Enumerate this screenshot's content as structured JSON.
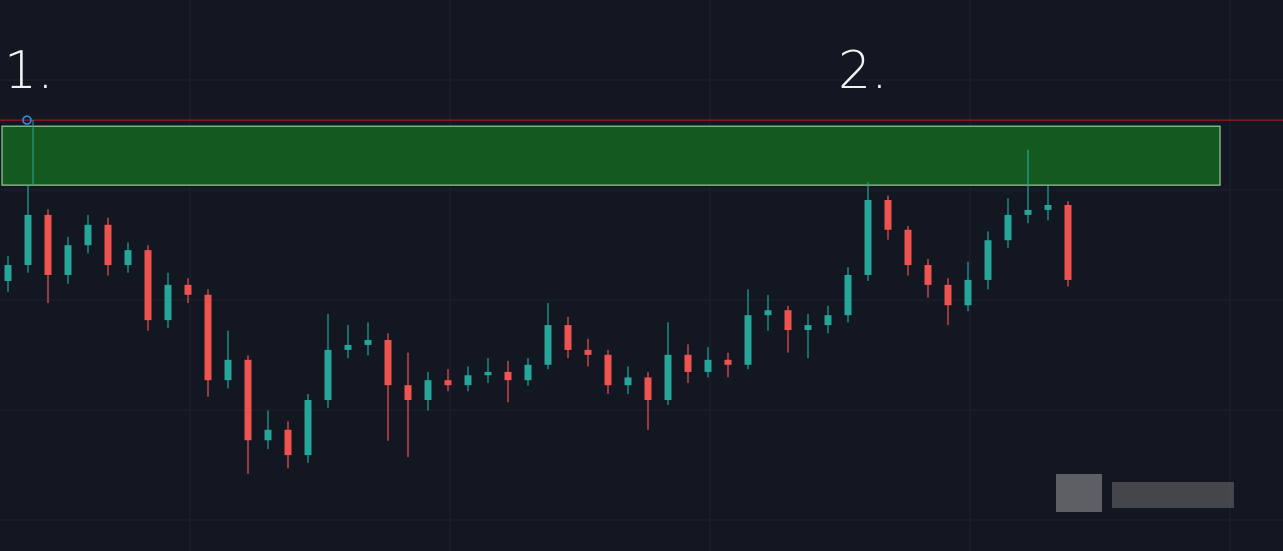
{
  "chart_data": {
    "type": "candlestick",
    "annotations": [
      "1.",
      "2."
    ],
    "ylim": [
      0,
      100
    ],
    "up_color": "#26a69a",
    "down_color": "#ef5350",
    "zone": {
      "low": 66.4,
      "high": 77.1,
      "color": "#145a20"
    },
    "resistance_line": {
      "value": 78.2,
      "color": "#b71c1c"
    },
    "open": [
      49.0,
      51.9,
      61.0,
      50.1,
      55.5,
      59.2,
      51.9,
      54.6,
      41.9,
      48.3,
      46.5,
      31.0,
      34.7,
      20.1,
      22.0,
      17.4,
      27.4,
      36.5,
      37.4,
      38.3,
      30.1,
      27.4,
      31.0,
      30.1,
      31.9,
      32.5,
      31.0,
      33.8,
      41.0,
      36.5,
      35.6,
      30.1,
      31.5,
      27.4,
      35.6,
      32.5,
      34.7,
      33.8,
      42.8,
      43.7,
      40.1,
      41.0,
      42.8,
      50.1,
      63.7,
      58.3,
      51.9,
      48.3,
      44.6,
      49.2,
      56.4,
      61.0,
      61.9,
      62.8
    ],
    "high": [
      53.5,
      66.4,
      62.0,
      57.0,
      61.0,
      60.5,
      56.0,
      55.5,
      50.5,
      49.5,
      47.5,
      40.0,
      35.5,
      25.5,
      23.5,
      28.5,
      43.0,
      41.0,
      41.5,
      39.5,
      36.0,
      32.5,
      33.0,
      33.5,
      35.0,
      34.5,
      35.0,
      45.0,
      42.5,
      38.5,
      36.5,
      33.5,
      32.5,
      41.5,
      37.5,
      37.0,
      36.0,
      47.5,
      46.5,
      44.5,
      43.0,
      44.5,
      51.5,
      66.9,
      64.5,
      59.0,
      53.0,
      49.5,
      52.5,
      58.0,
      64.0,
      72.8,
      66.4,
      63.5
    ],
    "low": [
      47.0,
      50.5,
      45.0,
      48.5,
      54.0,
      50.0,
      50.5,
      40.0,
      40.5,
      45.0,
      28.0,
      29.5,
      14.0,
      18.5,
      15.0,
      16.0,
      26.0,
      35.0,
      35.5,
      20.0,
      17.0,
      25.5,
      29.0,
      29.0,
      30.5,
      27.0,
      30.0,
      33.0,
      35.0,
      33.5,
      28.5,
      28.5,
      22.0,
      26.5,
      30.5,
      31.5,
      31.5,
      33.0,
      40.0,
      36.0,
      35.0,
      39.5,
      41.5,
      49.0,
      56.5,
      50.0,
      46.0,
      41.0,
      43.5,
      47.5,
      55.0,
      59.5,
      60.0,
      48.0
    ],
    "close": [
      51.9,
      61.0,
      50.1,
      55.5,
      59.2,
      51.9,
      54.6,
      41.9,
      48.3,
      46.5,
      31.0,
      34.7,
      20.1,
      22.0,
      17.4,
      27.4,
      36.5,
      37.4,
      38.3,
      30.1,
      27.4,
      31.0,
      30.1,
      31.9,
      32.5,
      31.0,
      33.8,
      41.0,
      36.5,
      35.6,
      30.1,
      31.5,
      27.4,
      35.6,
      32.5,
      34.7,
      33.8,
      42.8,
      43.7,
      40.1,
      41.0,
      42.8,
      50.1,
      63.7,
      58.3,
      51.9,
      48.3,
      44.6,
      49.2,
      56.4,
      61.0,
      61.9,
      62.8,
      49.2
    ]
  }
}
